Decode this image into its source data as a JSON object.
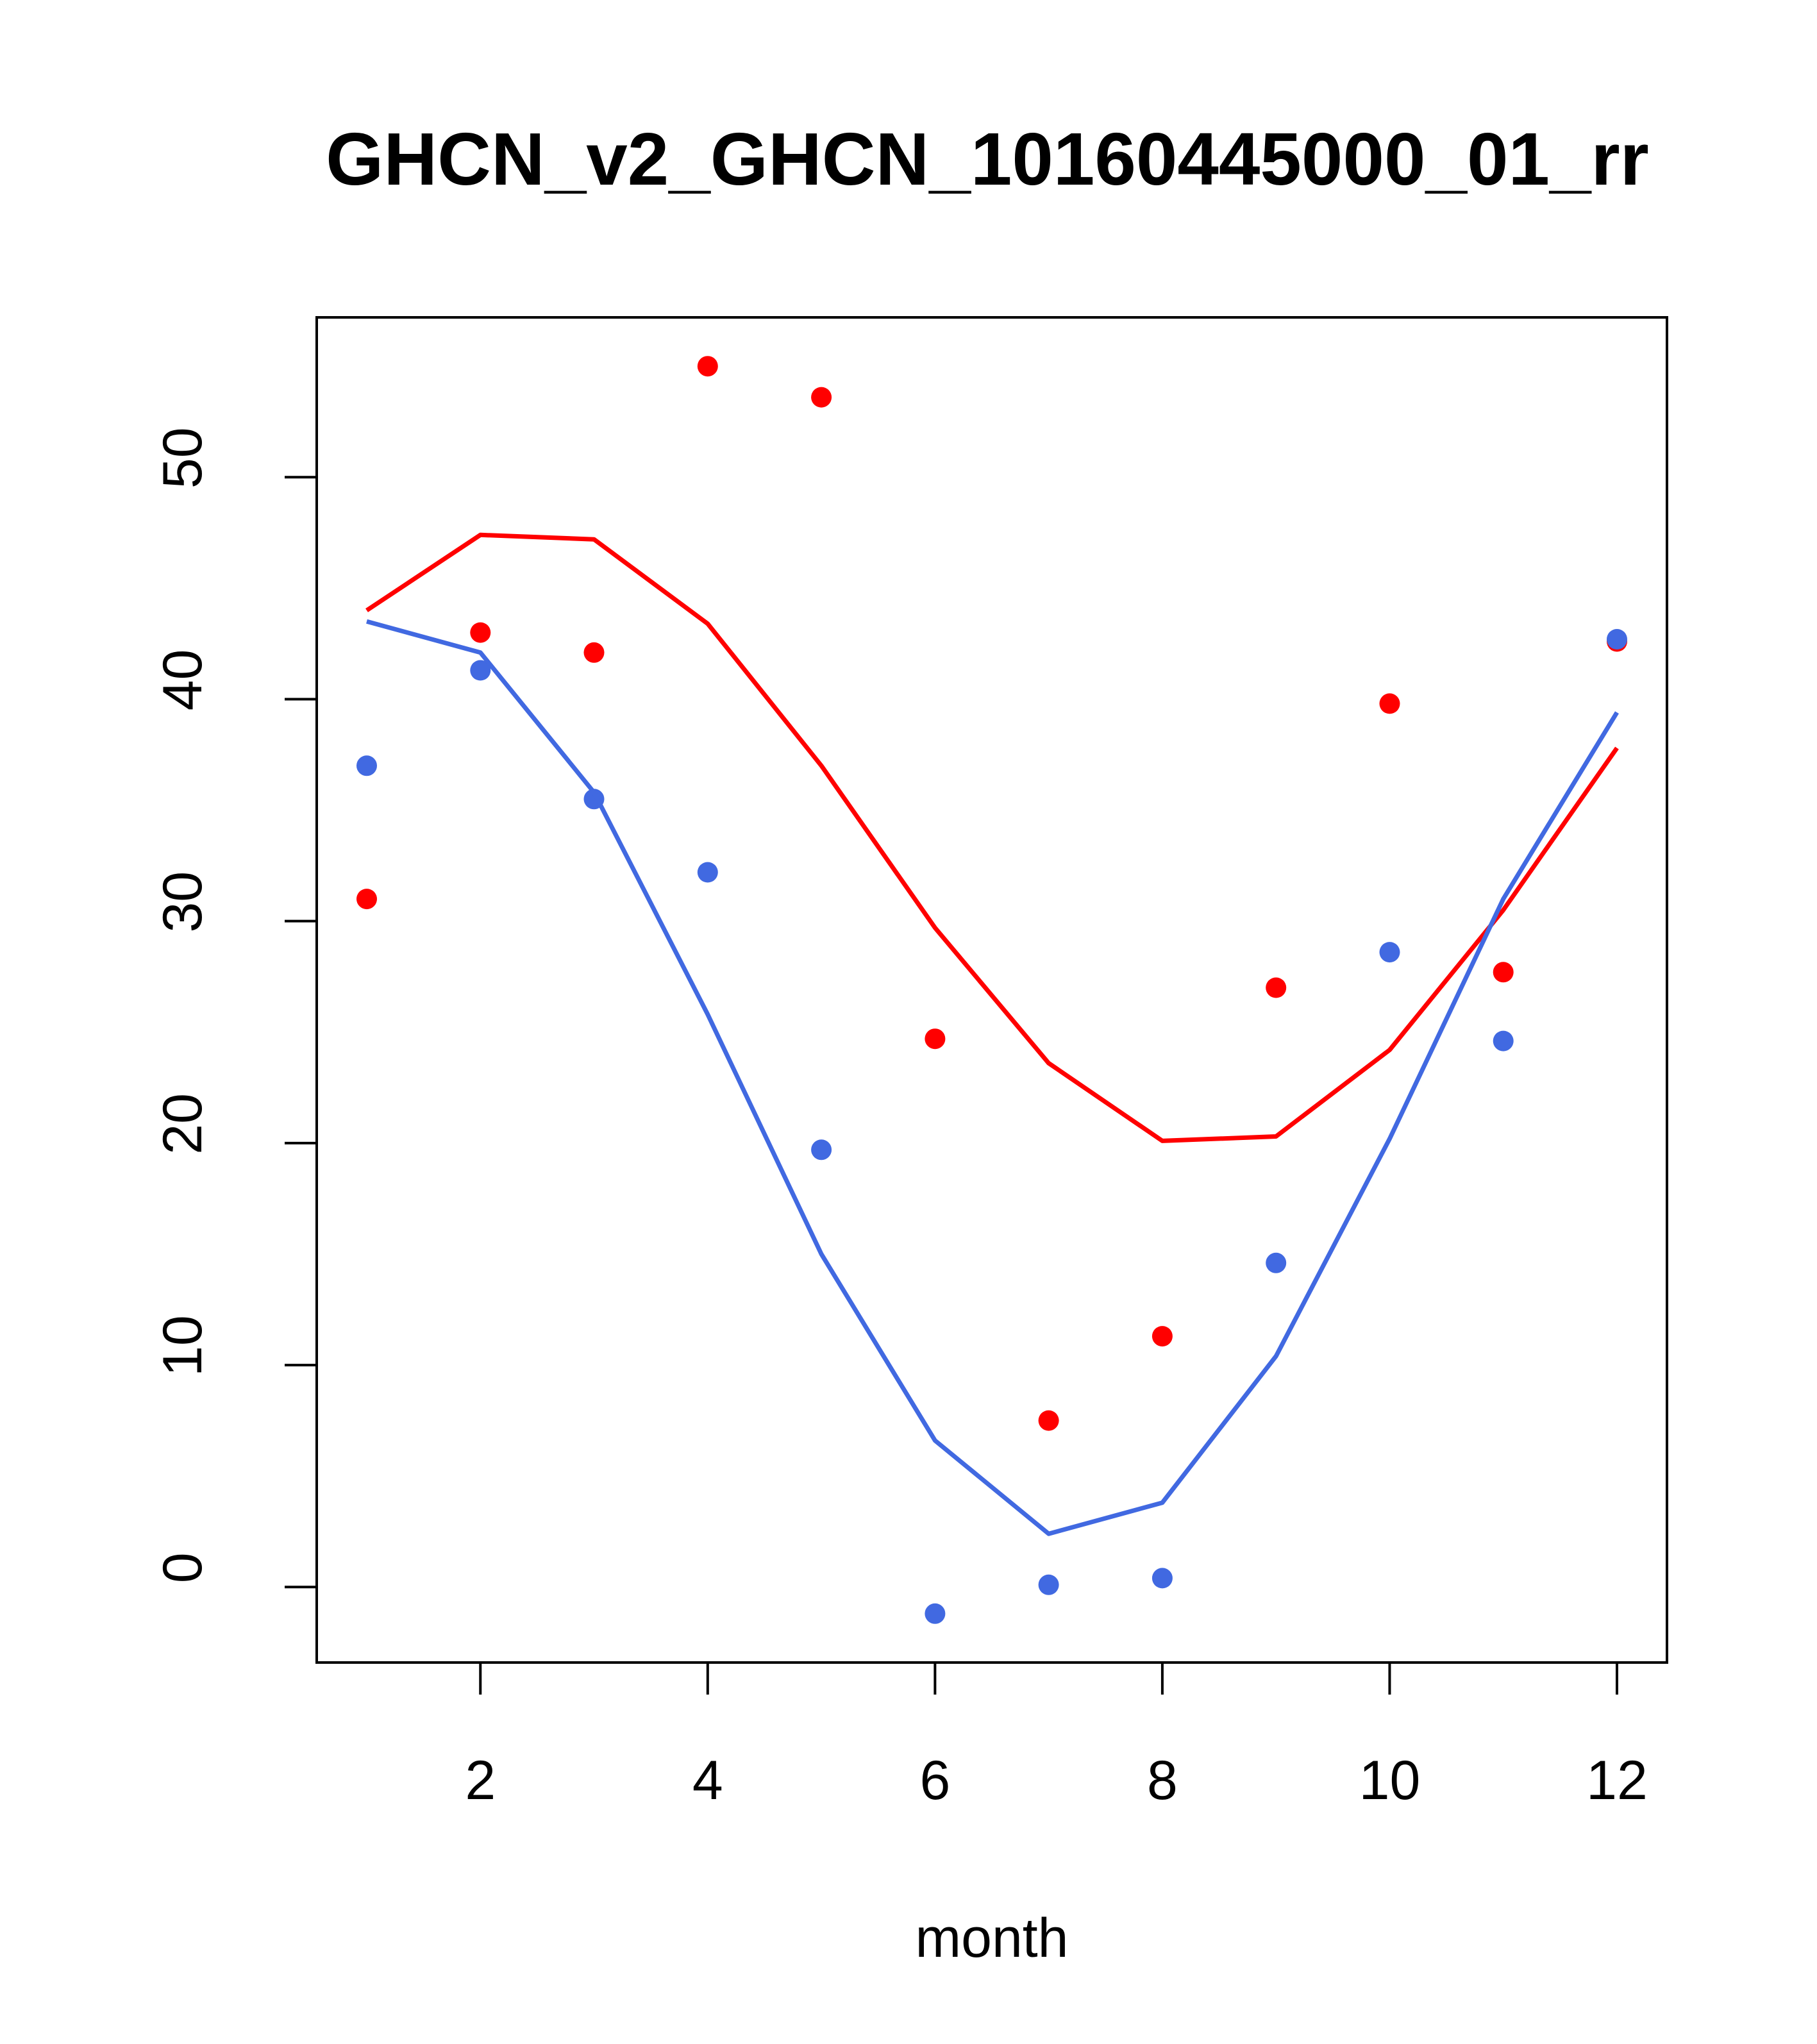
{
  "chart_data": {
    "type": "line",
    "title": "GHCN_v2_GHCN_10160445000_01_rr",
    "xlabel": "month",
    "ylabel": "",
    "xlim": [
      0.56,
      12.44
    ],
    "ylim": [
      -3.4,
      57.2
    ],
    "x_ticks": [
      2,
      4,
      6,
      8,
      10,
      12
    ],
    "y_ticks": [
      0,
      10,
      20,
      30,
      40,
      50
    ],
    "x": [
      1,
      2,
      3,
      4,
      5,
      6,
      7,
      8,
      9,
      10,
      11,
      12
    ],
    "grid": false,
    "legend": "none",
    "series": [
      {
        "name": "red-points",
        "kind": "points",
        "color": "#ff0000",
        "values": [
          31.0,
          43.0,
          42.1,
          55.0,
          53.6,
          24.7,
          7.5,
          11.3,
          27.0,
          39.8,
          27.7,
          42.6
        ]
      },
      {
        "name": "blue-points",
        "kind": "points",
        "color": "#4169e1",
        "values": [
          37.0,
          41.3,
          35.5,
          32.2,
          19.7,
          -1.2,
          0.1,
          0.4,
          14.6,
          28.6,
          24.6,
          42.7
        ]
      },
      {
        "name": "red-line",
        "kind": "line",
        "color": "#ff0000",
        "values": [
          44.0,
          47.4,
          47.2,
          43.4,
          37.0,
          29.7,
          23.6,
          20.1,
          20.3,
          24.2,
          30.5,
          37.8
        ]
      },
      {
        "name": "blue-line",
        "kind": "line",
        "color": "#4169e1",
        "values": [
          43.5,
          42.1,
          35.8,
          25.8,
          15.0,
          6.6,
          2.4,
          3.8,
          10.4,
          20.2,
          31.0,
          39.4
        ]
      }
    ]
  }
}
